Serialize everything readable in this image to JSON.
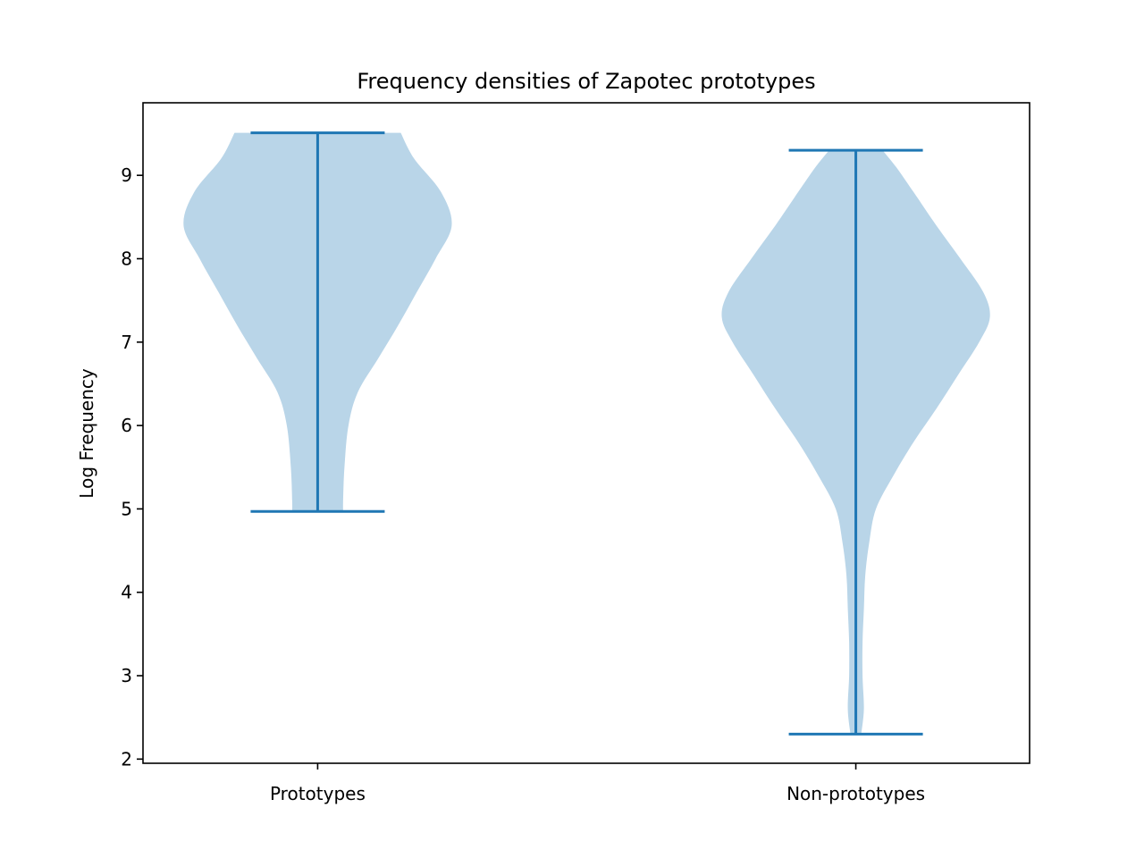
{
  "chart_data": {
    "type": "violin",
    "title": "Frequency densities of Zapotec prototypes",
    "xlabel": "",
    "ylabel": "Log Frequency",
    "categories": [
      "Prototypes",
      "Non-prototypes"
    ],
    "ylim": [
      1.95,
      9.87
    ],
    "yticks": [
      2,
      3,
      4,
      5,
      6,
      7,
      8,
      9
    ],
    "grid": false,
    "colors": {
      "body": "#b9d5e8",
      "lines": "#1f77b4",
      "axes": "#000000"
    },
    "series": [
      {
        "category": "Prototypes",
        "min": 4.97,
        "max": 9.51,
        "density_profile": [
          [
            4.97,
            0.19
          ],
          [
            5.1,
            0.19
          ],
          [
            5.5,
            0.2
          ],
          [
            6.0,
            0.23
          ],
          [
            6.4,
            0.3
          ],
          [
            6.8,
            0.45
          ],
          [
            7.2,
            0.6
          ],
          [
            7.6,
            0.74
          ],
          [
            8.0,
            0.88
          ],
          [
            8.4,
            1.0
          ],
          [
            8.8,
            0.92
          ],
          [
            9.2,
            0.72
          ],
          [
            9.51,
            0.62
          ]
        ]
      },
      {
        "category": "Non-prototypes",
        "min": 2.3,
        "max": 9.3,
        "density_profile": [
          [
            2.3,
            0.04
          ],
          [
            2.6,
            0.06
          ],
          [
            3.0,
            0.05
          ],
          [
            3.4,
            0.05
          ],
          [
            3.8,
            0.06
          ],
          [
            4.2,
            0.07
          ],
          [
            4.6,
            0.1
          ],
          [
            5.0,
            0.15
          ],
          [
            5.4,
            0.28
          ],
          [
            5.8,
            0.43
          ],
          [
            6.2,
            0.6
          ],
          [
            6.6,
            0.76
          ],
          [
            7.0,
            0.92
          ],
          [
            7.3,
            1.0
          ],
          [
            7.6,
            0.95
          ],
          [
            8.0,
            0.78
          ],
          [
            8.4,
            0.6
          ],
          [
            8.8,
            0.43
          ],
          [
            9.1,
            0.3
          ],
          [
            9.3,
            0.2
          ]
        ]
      }
    ]
  }
}
